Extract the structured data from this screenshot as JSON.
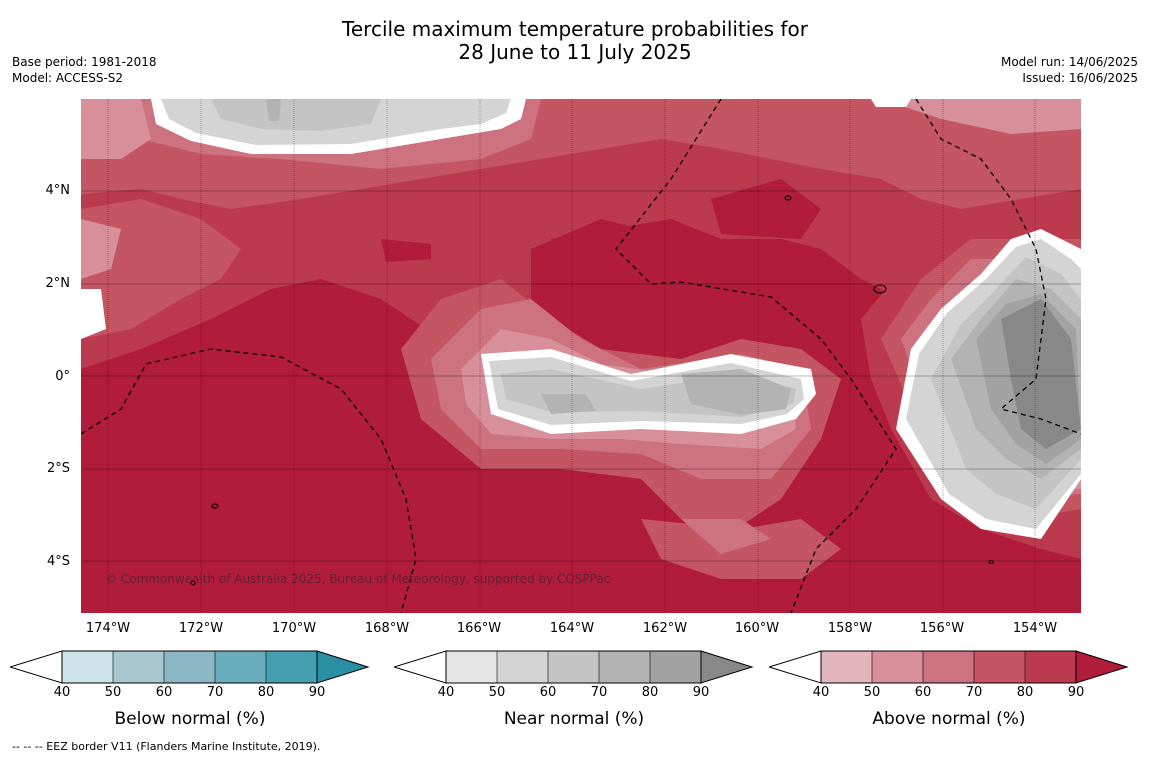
{
  "title_line1": "Tercile maximum temperature probabilities for",
  "title_line2": "28 June to 11 July 2025",
  "base_period": "Base period: 1981-2018",
  "model": "Model: ACCESS-S2",
  "model_run": "Model run: 14/06/2025",
  "issued": "Issued: 16/06/2025",
  "y_ticks": [
    "4°N",
    "2°N",
    "0°",
    "2°S",
    "4°S"
  ],
  "x_ticks": [
    "174°W",
    "172°W",
    "170°W",
    "168°W",
    "166°W",
    "164°W",
    "162°W",
    "160°W",
    "158°W",
    "156°W",
    "154°W"
  ],
  "credit": "© Commonwealth of Australia 2025, Bureau of Meteorology, supported by COSPPac",
  "colorbars": [
    {
      "title": "Below normal (%)",
      "ticks": [
        "40",
        "50",
        "60",
        "70",
        "80",
        "90"
      ],
      "colors": [
        "#cde3ea",
        "#a9c7cf",
        "#8bb7c4",
        "#6aadbc",
        "#44a0b0",
        "#2a8fa3"
      ]
    },
    {
      "title": "Near normal (%)",
      "ticks": [
        "40",
        "50",
        "60",
        "70",
        "80",
        "90"
      ],
      "colors": [
        "#e5e5e5",
        "#d4d4d4",
        "#c4c4c4",
        "#b3b3b3",
        "#a2a2a2",
        "#888888"
      ]
    },
    {
      "title": "Above normal (%)",
      "ticks": [
        "40",
        "50",
        "60",
        "70",
        "80",
        "90"
      ],
      "colors": [
        "#e3b5bd",
        "#d78f99",
        "#cd727f",
        "#c45563",
        "#bb3a4e",
        "#b01c3a"
      ]
    }
  ],
  "footer": "-- -- -- EEZ border V11 (Flanders Marine Institute, 2019)."
}
